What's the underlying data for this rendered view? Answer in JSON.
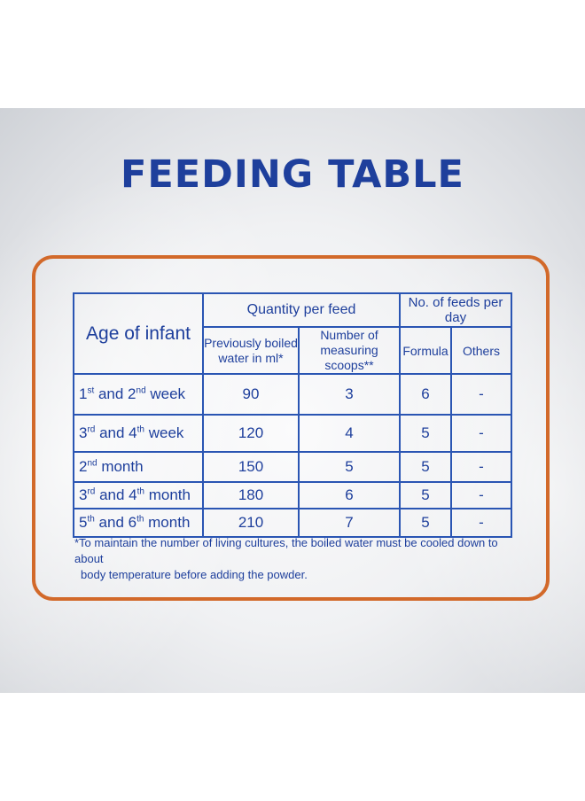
{
  "title": "FEEDING TABLE",
  "table": {
    "age_header": "Age of infant",
    "quantity_header": "Quantity per feed",
    "feeds_header": "No. of feeds per day",
    "water_header_line1": "Previously boiled",
    "water_header_line2": "water in ml*",
    "scoops_header_line1": "Number of",
    "scoops_header_line2": "measuring scoops**",
    "formula_header": "Formula",
    "others_header": "Others",
    "rows": [
      {
        "age_a": "1",
        "sup_a": "st",
        "mid": " and 2",
        "sup_b": "nd",
        "rest": " week",
        "water": "90",
        "scoops": "3",
        "formula": "6",
        "others": "-"
      },
      {
        "age_a": "3",
        "sup_a": "rd",
        "mid": " and 4",
        "sup_b": "th",
        "rest": " week",
        "water": "120",
        "scoops": "4",
        "formula": "5",
        "others": "-"
      },
      {
        "age_a": "2",
        "sup_a": "nd",
        "mid": " month",
        "sup_b": "",
        "rest": "",
        "water": "150",
        "scoops": "5",
        "formula": "5",
        "others": "-"
      },
      {
        "age_a": "3",
        "sup_a": "rd",
        "mid": " and 4",
        "sup_b": "th",
        "rest": " month",
        "water": "180",
        "scoops": "6",
        "formula": "5",
        "others": "-"
      },
      {
        "age_a": "5",
        "sup_a": "th",
        "mid": " and 6",
        "sup_b": "th",
        "rest": " month",
        "water": "210",
        "scoops": "7",
        "formula": "5",
        "others": "-"
      }
    ]
  },
  "footnote": {
    "line1": "*To maintain the number of living cultures, the boiled water must be cooled down to about",
    "line2": "body temperature before adding the powder."
  },
  "colors": {
    "brand_blue": "#1e3f9c",
    "frame_orange": "#d2692a"
  }
}
